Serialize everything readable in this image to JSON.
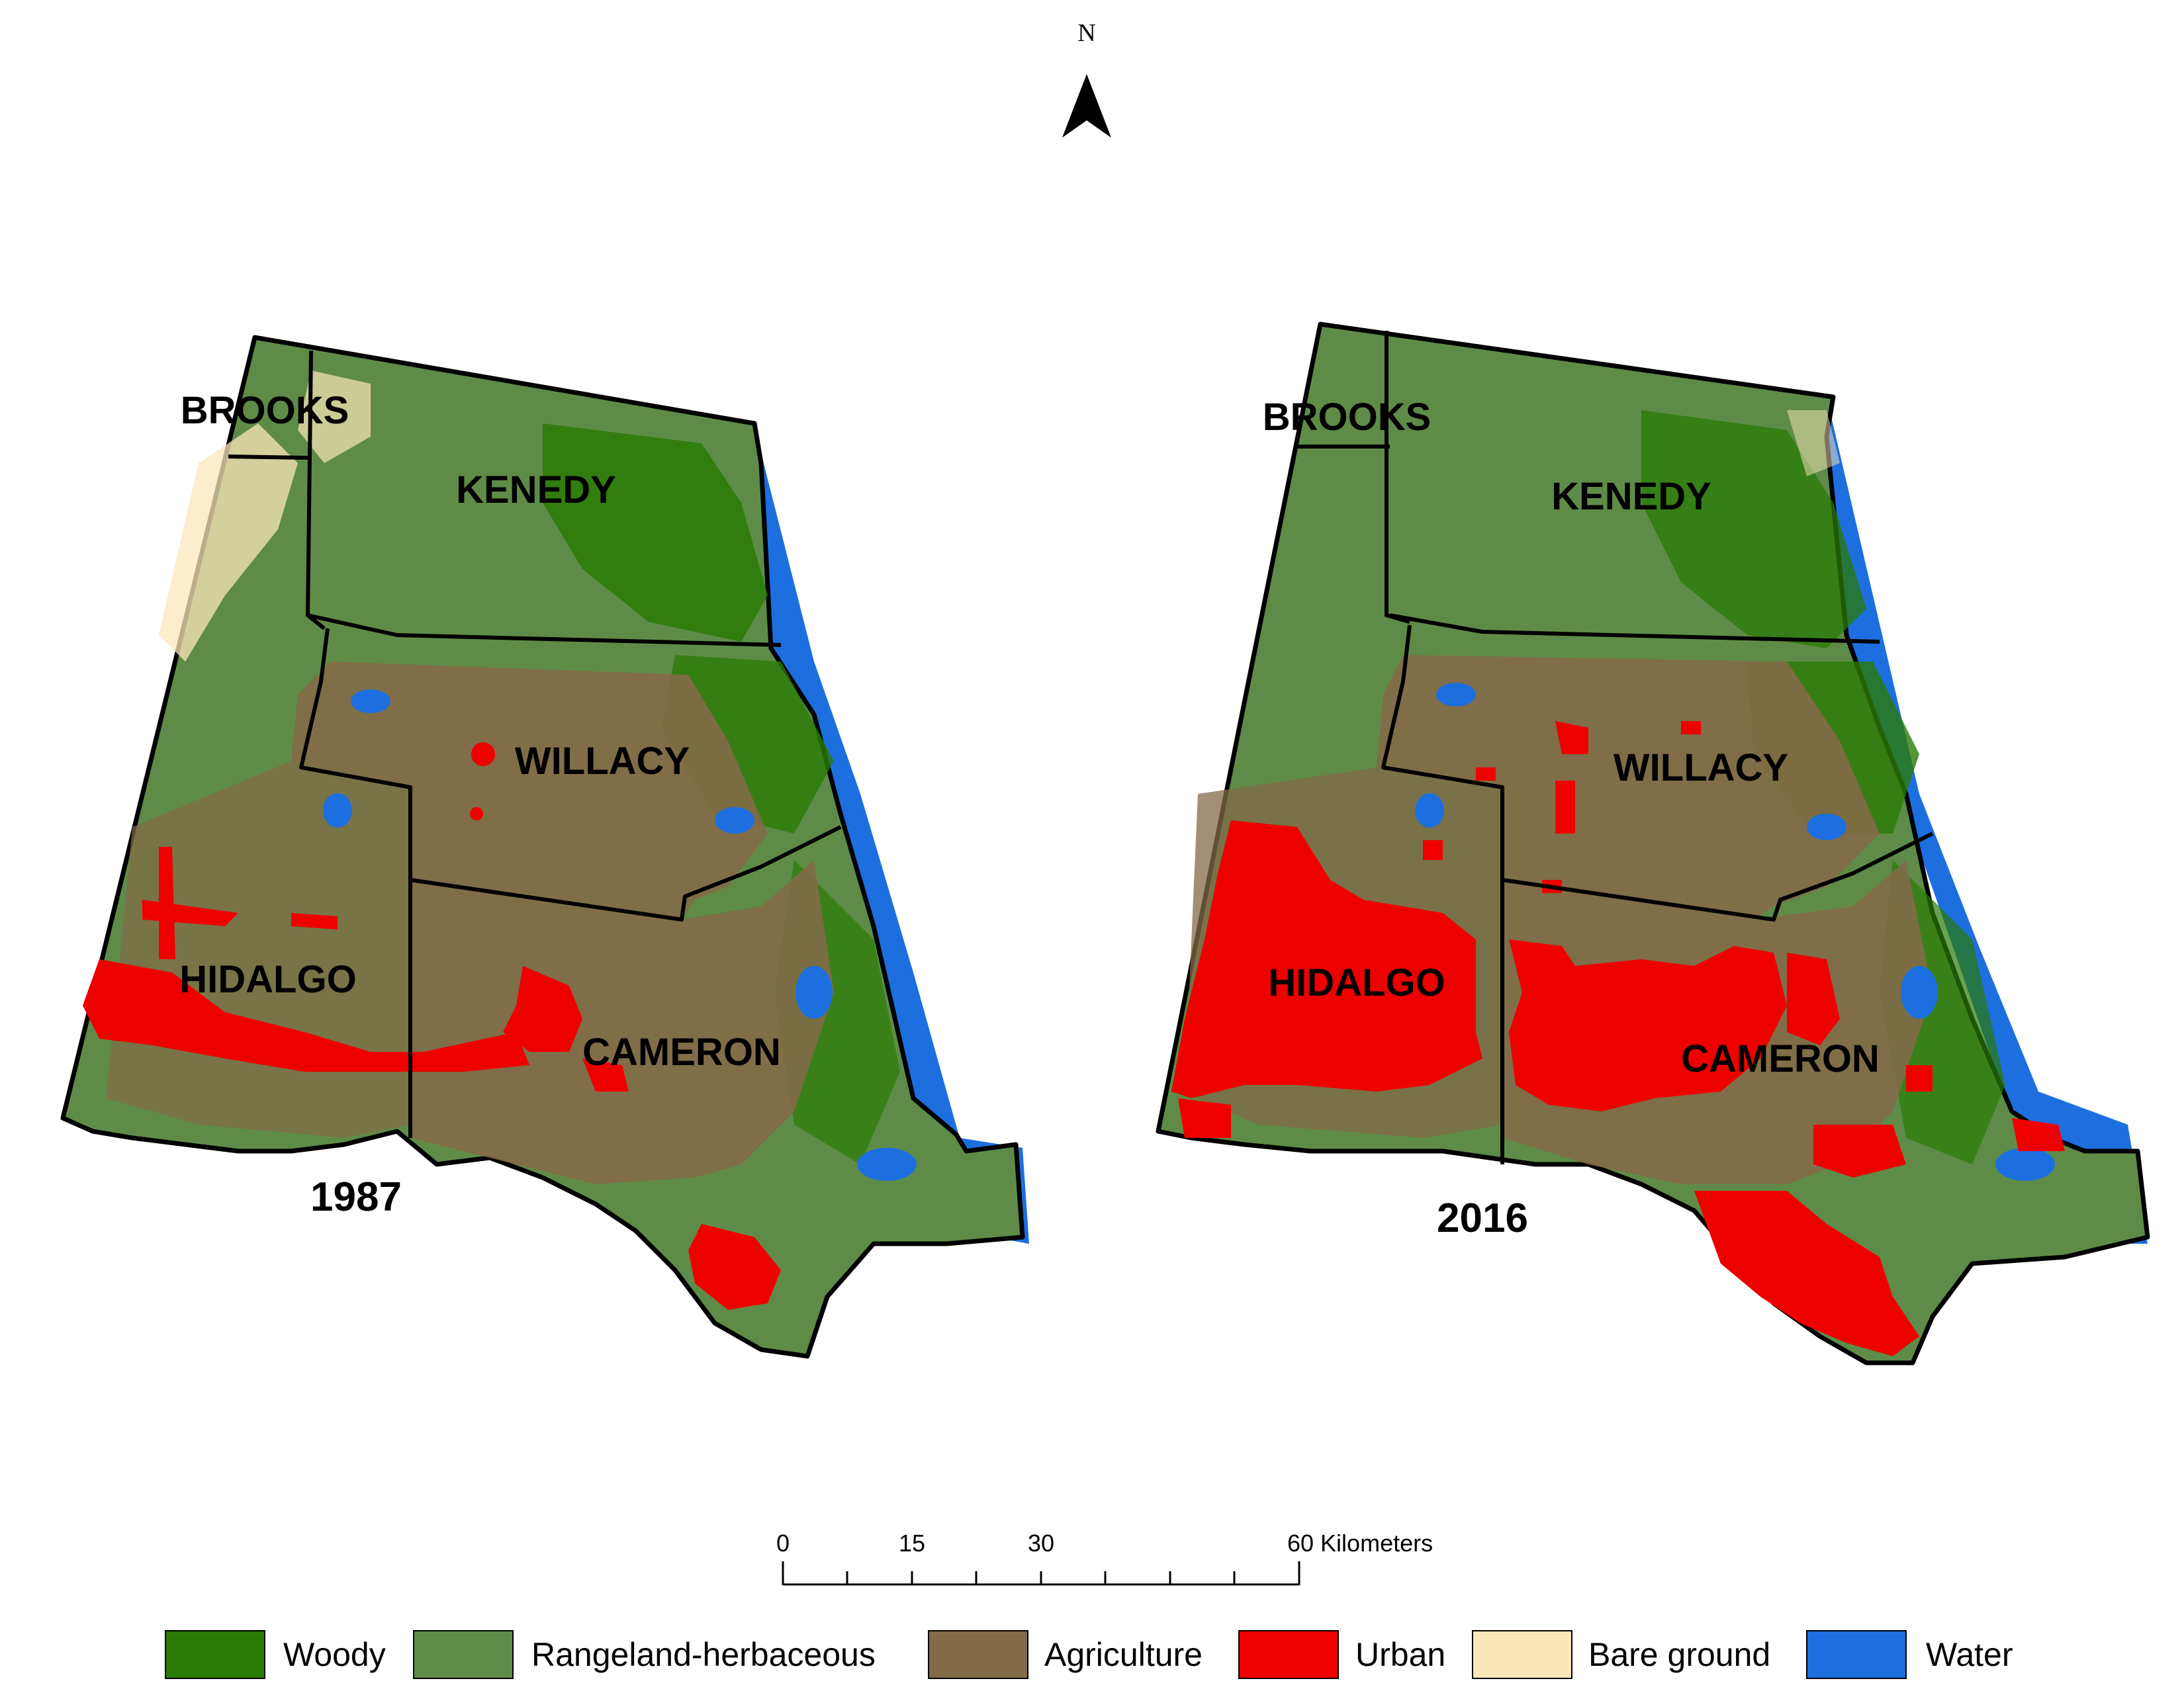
{
  "maps": [
    {
      "year": "1987",
      "counties": {
        "brooks": "BROOKS",
        "kenedy": "KENEDY",
        "willacy": "WILLACY",
        "hidalgo": "HIDALGO",
        "cameron": "CAMERON"
      }
    },
    {
      "year": "2016",
      "counties": {
        "brooks": "BROOKS",
        "kenedy": "KENEDY",
        "willacy": "WILLACY",
        "hidalgo": "HIDALGO",
        "cameron": "CAMERON"
      }
    }
  ],
  "north_arrow": {
    "label": "N"
  },
  "scale_bar": {
    "ticks": [
      "0",
      "15",
      "30",
      "60 Kilometers"
    ]
  },
  "legend": [
    {
      "label": "Woody",
      "color": "#2a7a06"
    },
    {
      "label": "Rangeland-herbaceous",
      "color": "#5e8c48"
    },
    {
      "label": "Agriculture",
      "color": "#836a48"
    },
    {
      "label": "Urban",
      "color": "#ee0000"
    },
    {
      "label": "Bare ground",
      "color": "#fbe7bb"
    },
    {
      "label": "Water",
      "color": "#1d6fe0"
    }
  ]
}
